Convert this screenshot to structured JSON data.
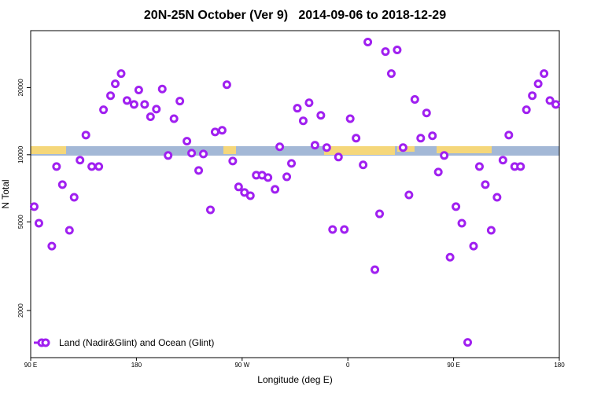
{
  "chart_data": {
    "type": "scatter",
    "title": "20N-25N October (Ver 9)   2014-09-06 to 2018-12-29",
    "x_label": "Longitude (deg E)",
    "y_label": "N Total",
    "log_y": true,
    "legend": "bottom-left",
    "xlim": [
      90,
      540
    ],
    "xticks": [
      {
        "value": 90,
        "label": "90 E"
      },
      180,
      {
        "value": 270,
        "label": "90 W"
      },
      {
        "value": 360,
        "label": "0"
      },
      {
        "value": 450,
        "label": "90 E"
      },
      {
        "value": 540,
        "label": "180"
      }
    ],
    "ylim": [
      1230,
      36000
    ],
    "yticks": [
      2000,
      5000,
      10000,
      20000
    ],
    "series": [
      {
        "name": "Land (Nadir&Glint) and Ocean (Glint)",
        "color": "#a020f0",
        "x": [
          93,
          97,
          108,
          112,
          117,
          123,
          127,
          132,
          137,
          142,
          148,
          152,
          158,
          162,
          167,
          172,
          178,
          182,
          187,
          192,
          197,
          202,
          207,
          212,
          217,
          223,
          227,
          233,
          237,
          243,
          247,
          253,
          257,
          262,
          267,
          272,
          277,
          282,
          287,
          292,
          298,
          302,
          308,
          312,
          317,
          322,
          327,
          332,
          337,
          342,
          347,
          352,
          357,
          362,
          367,
          373,
          377,
          383,
          387,
          392,
          397,
          402,
          407,
          412,
          417,
          422,
          427,
          432,
          437,
          442,
          447,
          452,
          457,
          462,
          467,
          472,
          477,
          482,
          487,
          492,
          497,
          502,
          507,
          512,
          517,
          522,
          527,
          532,
          537
        ],
        "values": [
          5850,
          4930,
          3890,
          8850,
          7340,
          4580,
          6440,
          9450,
          12250,
          8850,
          8850,
          15900,
          18400,
          20800,
          23100,
          17500,
          16800,
          19500,
          16800,
          14800,
          16000,
          19700,
          9920,
          14500,
          17400,
          11500,
          10160,
          8500,
          10080,
          5660,
          12650,
          12870,
          20600,
          9370,
          7170,
          6770,
          6550,
          8090,
          8090,
          7900,
          6990,
          10850,
          7960,
          9140,
          16160,
          14190,
          17100,
          11030,
          15010,
          10760,
          4620,
          9760,
          4620,
          14500,
          11860,
          9000,
          32000,
          3050,
          5430,
          29000,
          23100,
          29500,
          10760,
          6600,
          17700,
          11860,
          15390,
          12160,
          8360,
          9920,
          3470,
          5850,
          4930,
          1440,
          3890,
          8850,
          7340,
          4580,
          6440,
          9450,
          12250,
          8850,
          8850,
          15900,
          18400,
          20800,
          23100,
          17500,
          16800
        ]
      }
    ]
  }
}
